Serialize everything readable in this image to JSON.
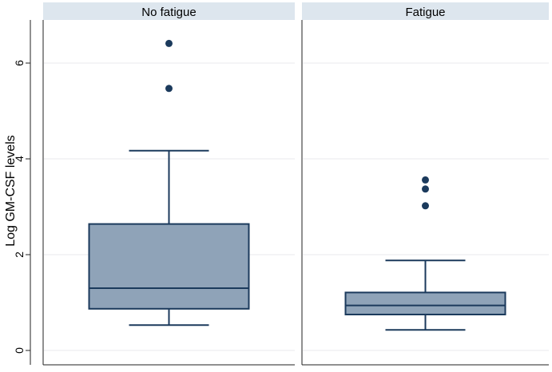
{
  "chart_data": {
    "type": "boxplot",
    "ylabel": "Log GM-CSF levels",
    "ylim": [
      -0.3,
      6.9
    ],
    "yticks": [
      0,
      2,
      4,
      6
    ],
    "grid": true,
    "panels": [
      {
        "label": "No fatigue",
        "box": {
          "min": 0.53,
          "q1": 0.87,
          "median": 1.3,
          "q3": 2.64,
          "max": 4.17
        },
        "outliers": [
          6.41,
          5.47
        ]
      },
      {
        "label": "Fatigue",
        "box": {
          "min": 0.43,
          "q1": 0.75,
          "median": 0.94,
          "q3": 1.21,
          "max": 1.88
        },
        "outliers": [
          3.56,
          3.37,
          3.02
        ]
      }
    ],
    "colors": {
      "box_fill": "#8fa3b8",
      "box_stroke": "#1b3a5c",
      "outlier": "#1b3a5c",
      "strip": "#dde6ee",
      "grid": "#e8eaec",
      "axis": "#222222"
    }
  }
}
